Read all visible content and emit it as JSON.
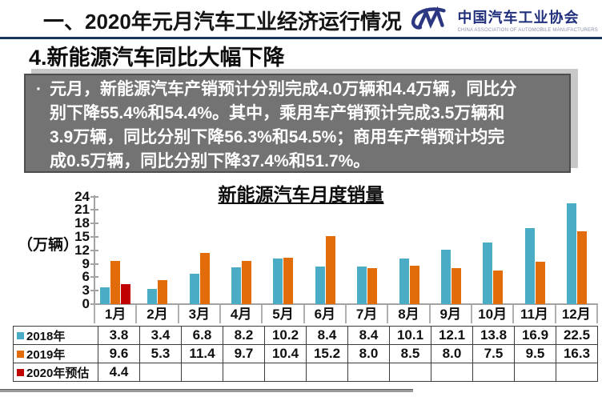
{
  "header": {
    "title": "一、2020年元月汽车工业经济运行情况",
    "logo": {
      "org_cn": "中国汽车工业协会",
      "org_en": "CHINA ASSOCIATION OF AUTOMOBILE MANUFACTURERS",
      "color": "#2b3780"
    },
    "rule_color": "#17365d"
  },
  "section": {
    "title": "4.新能源汽车同比大幅下降"
  },
  "summary": {
    "bullet": "·",
    "text": "元月，新能源汽车产销预计分别完成4.0万辆和4.4万辆，同比分别下降55.4%和54.4%。其中，乘用车产销预计完成3.5万辆和3.9万辆，同比分别下降56.3%和54.5%；商用车产销预计均完成0.5万辆，同比分别下降37.4%和51.7%。",
    "lines": [
      "元月，新能源汽车产销预计分别完成4.0万辆和4.4万辆，同比分",
      "别下降55.4%和54.4%。其中，乘用车产销预计完成3.5万辆和",
      "3.9万辆，同比分别下降56.3%和54.5%；商用车产销预计均完",
      "成0.5万辆，同比分别下降37.4%和51.7%。"
    ],
    "box_bg": "#737373",
    "text_color": "#ffffff"
  },
  "chart_data": {
    "type": "bar",
    "title": "新能源汽车月度销量",
    "ylabel": "（万辆）",
    "xlabel": "",
    "ylim": [
      0,
      24
    ],
    "yticks": [
      0,
      3,
      6,
      9,
      12,
      15,
      18,
      21,
      24
    ],
    "grid": false,
    "legend_position": "table-below",
    "categories": [
      "1月",
      "2月",
      "3月",
      "4月",
      "5月",
      "6月",
      "7月",
      "8月",
      "9月",
      "10月",
      "11月",
      "12月"
    ],
    "series": [
      {
        "name": "2018年",
        "color": "#4BACC6",
        "values": [
          3.8,
          3.4,
          6.8,
          8.2,
          10.2,
          8.4,
          8.4,
          10.1,
          12.1,
          13.8,
          16.9,
          22.5
        ]
      },
      {
        "name": "2019年",
        "color": "#E36C0A",
        "values": [
          9.6,
          5.3,
          11.4,
          9.7,
          10.4,
          15.2,
          8.0,
          8.5,
          8.0,
          7.5,
          9.5,
          16.3
        ]
      },
      {
        "name": "2020年预估",
        "color": "#C00000",
        "values": [
          4.4,
          null,
          null,
          null,
          null,
          null,
          null,
          null,
          null,
          null,
          null,
          null
        ]
      }
    ]
  }
}
